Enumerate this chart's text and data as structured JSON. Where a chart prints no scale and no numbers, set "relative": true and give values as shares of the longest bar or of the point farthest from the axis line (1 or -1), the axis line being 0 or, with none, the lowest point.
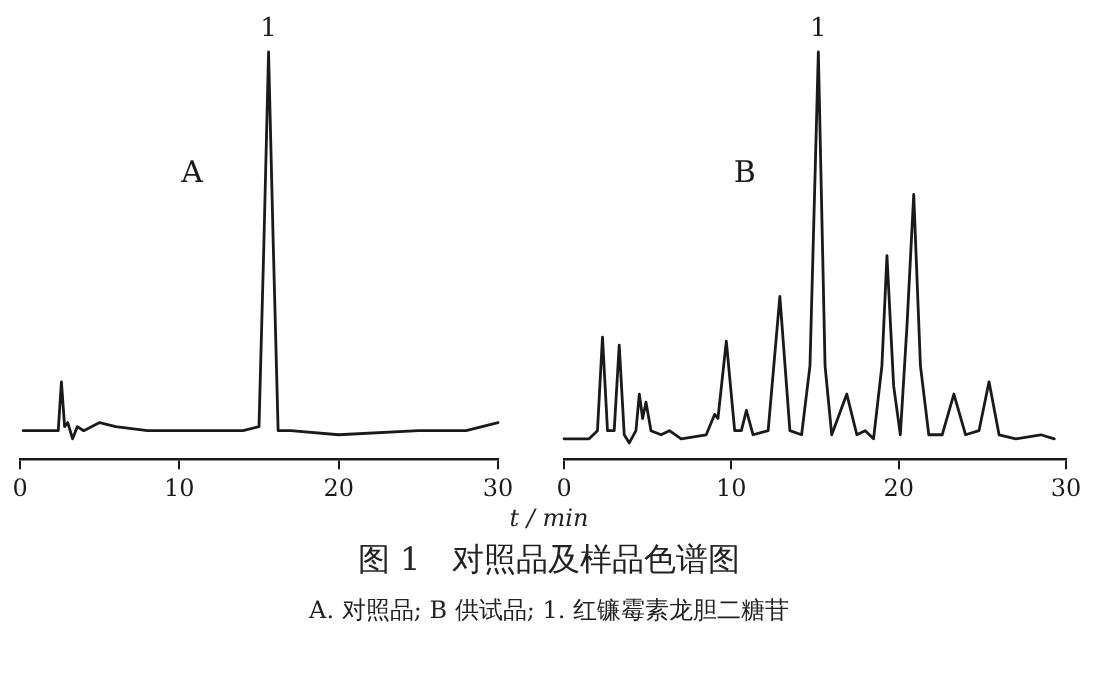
{
  "chart_data": [
    {
      "type": "line",
      "relative": true,
      "xlim": [
        0,
        30
      ],
      "xticks": [
        0,
        10,
        20,
        30
      ],
      "grid": false,
      "legend": false,
      "tick_labels": "x",
      "marker": "none",
      "line_style": "solid",
      "annotations": [
        "A",
        {
          "text": "1",
          "x": 15.6,
          "y": 1
        }
      ],
      "series": [
        {
          "color": "#1a1a1a",
          "x": [
            0.2,
            2.4,
            2.6,
            2.8,
            3.0,
            3.3,
            3.6,
            4,
            5,
            6,
            8,
            10,
            14,
            15.0,
            15.3,
            15.6,
            15.9,
            16.2,
            17,
            20,
            25,
            28,
            30
          ],
          "values": [
            0.07,
            0.07,
            0.19,
            0.08,
            0.09,
            0.05,
            0.08,
            0.07,
            0.09,
            0.08,
            0.07,
            0.07,
            0.07,
            0.08,
            0.52,
            1,
            0.52,
            0.07,
            0.07,
            0.06,
            0.07,
            0.07,
            0.09
          ]
        }
      ]
    },
    {
      "type": "line",
      "relative": true,
      "xlim": [
        0,
        30
      ],
      "xticks": [
        0,
        10,
        20,
        30
      ],
      "grid": false,
      "legend": false,
      "tick_labels": "x",
      "marker": "none",
      "line_style": "solid",
      "xlabel": "t / min",
      "title": "图 1　对照品及样品色谱图",
      "annotations": [
        "B",
        {
          "text": "1",
          "x": 15.2,
          "y": 1
        },
        "A. 对照品; B 供试品; 1. 红镰霉素龙胆二糖苷"
      ],
      "series": [
        {
          "color": "#1a1a1a",
          "x": [
            0,
            1.5,
            2.0,
            2.3,
            2.6,
            3.0,
            3.3,
            3.6,
            3.9,
            4.3,
            4.5,
            4.7,
            4.9,
            5.2,
            5.8,
            6.3,
            7,
            8.5,
            9.0,
            9.2,
            9.7,
            10.2,
            10.6,
            10.9,
            11.3,
            12.2,
            12.9,
            13.5,
            14.2,
            14.7,
            15.2,
            15.6,
            16.0,
            16.9,
            17.5,
            18.0,
            18.5,
            19.0,
            19.3,
            19.7,
            20.1,
            20.5,
            20.9,
            21.3,
            21.8,
            22.6,
            23.3,
            24.0,
            24.8,
            25.4,
            26,
            27,
            28.5,
            29.3
          ],
          "values": [
            0.05,
            0.05,
            0.07,
            0.3,
            0.07,
            0.07,
            0.28,
            0.06,
            0.04,
            0.07,
            0.16,
            0.1,
            0.14,
            0.07,
            0.06,
            0.07,
            0.05,
            0.06,
            0.11,
            0.1,
            0.29,
            0.07,
            0.07,
            0.12,
            0.06,
            0.07,
            0.4,
            0.07,
            0.06,
            0.23,
            1,
            0.23,
            0.06,
            0.16,
            0.06,
            0.07,
            0.05,
            0.23,
            0.5,
            0.18,
            0.06,
            0.33,
            0.65,
            0.23,
            0.06,
            0.06,
            0.16,
            0.06,
            0.07,
            0.19,
            0.06,
            0.05,
            0.06,
            0.05
          ]
        }
      ]
    }
  ]
}
